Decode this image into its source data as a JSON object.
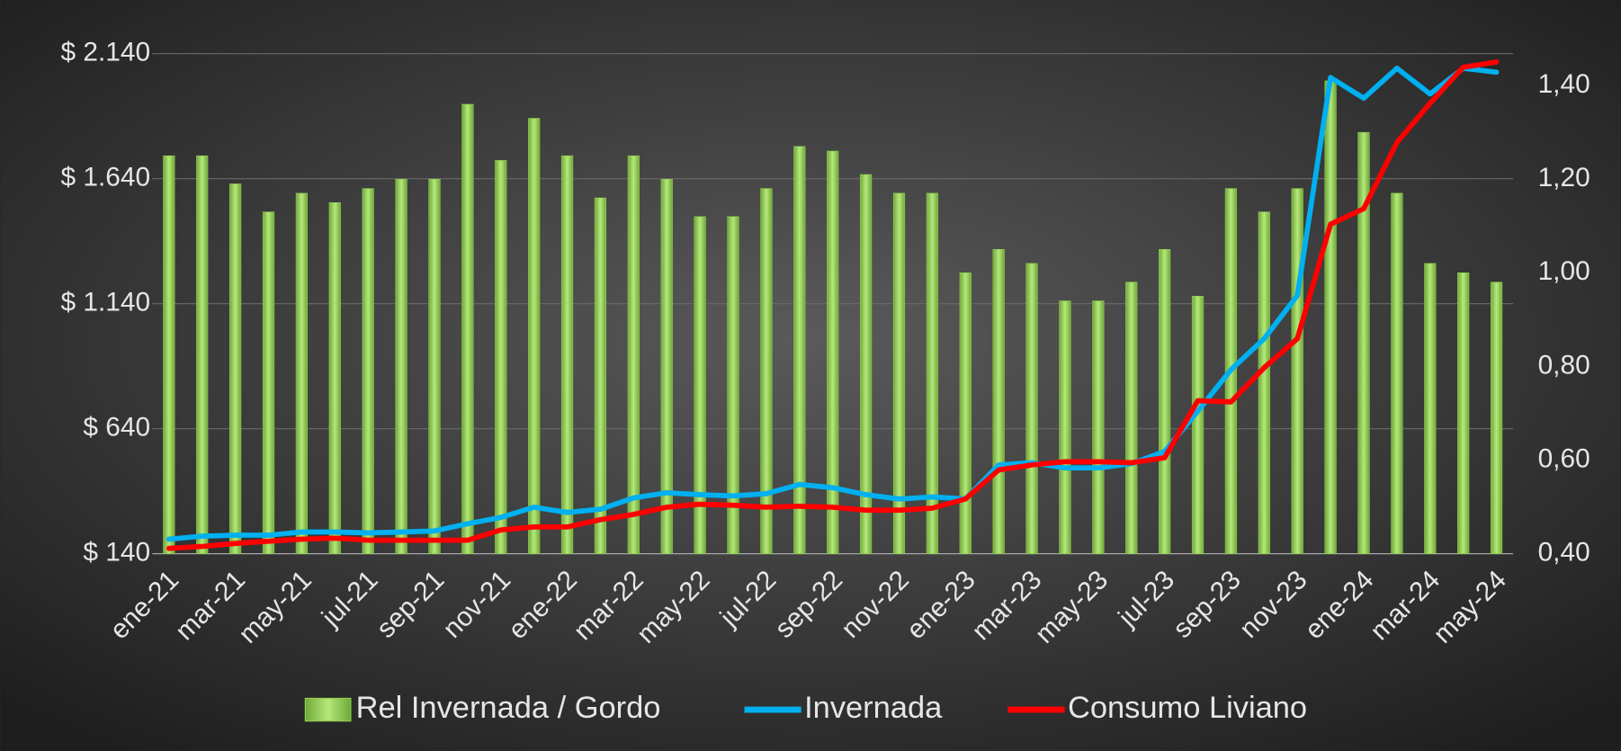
{
  "chart_data": {
    "type": "bar-line",
    "categories": [
      "ene-21",
      null,
      "mar-21",
      null,
      "may-21",
      null,
      "jul-21",
      null,
      "sep-21",
      null,
      "nov-21",
      null,
      "ene-22",
      null,
      "mar-22",
      null,
      "may-22",
      null,
      "jul-22",
      null,
      "sep-22",
      null,
      "nov-22",
      null,
      "ene-23",
      null,
      "mar-23",
      null,
      "may-23",
      null,
      "jul-23",
      null,
      "sep-23",
      null,
      "nov-23",
      null,
      "ene-24",
      null,
      "mar-24",
      null,
      "may-24"
    ],
    "series": [
      {
        "name": "Rel Invernada / Gordo",
        "type": "bar",
        "axis": "y2",
        "color": "#92d050",
        "values": [
          1.25,
          1.25,
          1.19,
          1.13,
          1.17,
          1.15,
          1.18,
          1.2,
          1.2,
          1.36,
          1.24,
          1.33,
          1.25,
          1.16,
          1.25,
          1.2,
          1.12,
          1.12,
          1.18,
          1.27,
          1.26,
          1.21,
          1.17,
          1.17,
          1.0,
          1.05,
          1.02,
          0.94,
          0.94,
          0.98,
          1.05,
          0.95,
          1.18,
          1.13,
          1.18,
          1.41,
          1.3,
          1.17,
          1.02,
          1.0,
          0.98
        ]
      },
      {
        "name": "Invernada",
        "type": "line",
        "color": "#00b0f0",
        "values": [
          198,
          210,
          214,
          214,
          227,
          227,
          223,
          227,
          231,
          260,
          285,
          326,
          305,
          318,
          363,
          384,
          376,
          371,
          380,
          417,
          404,
          376,
          359,
          367,
          359,
          495,
          504,
          483,
          483,
          500,
          549,
          710,
          876,
          1000,
          1173,
          2045,
          1962,
          2082,
          1979,
          2082,
          2066
        ]
      },
      {
        "name": "Consumo Liviano",
        "type": "line",
        "color": "#ff0000",
        "values": [
          161,
          169,
          181,
          190,
          198,
          202,
          194,
          194,
          194,
          194,
          235,
          247,
          247,
          276,
          297,
          326,
          338,
          334,
          326,
          330,
          326,
          314,
          314,
          322,
          359,
          475,
          495,
          508,
          508,
          504,
          524,
          752,
          747,
          884,
          1000,
          1458,
          1520,
          1785,
          1942,
          2086,
          2107
        ]
      }
    ],
    "ylim": [
      140,
      2140
    ],
    "yticks": [
      {
        "value": 140,
        "label": "$ 140"
      },
      {
        "value": 640,
        "label": "$ 640"
      },
      {
        "value": 1140,
        "label": "$ 1.140"
      },
      {
        "value": 1640,
        "label": "$ 1.640"
      },
      {
        "value": 2140,
        "label": "$ 2.140"
      }
    ],
    "y2lim": [
      0.4,
      1.468
    ],
    "y2ticks": [
      {
        "value": 0.4,
        "label": "0,40"
      },
      {
        "value": 0.6,
        "label": "0,60"
      },
      {
        "value": 0.8,
        "label": "0,80"
      },
      {
        "value": 1.0,
        "label": "1,00"
      },
      {
        "value": 1.2,
        "label": "1,20"
      },
      {
        "value": 1.4,
        "label": "1,40"
      }
    ],
    "grid": true,
    "legend": "bottom"
  }
}
